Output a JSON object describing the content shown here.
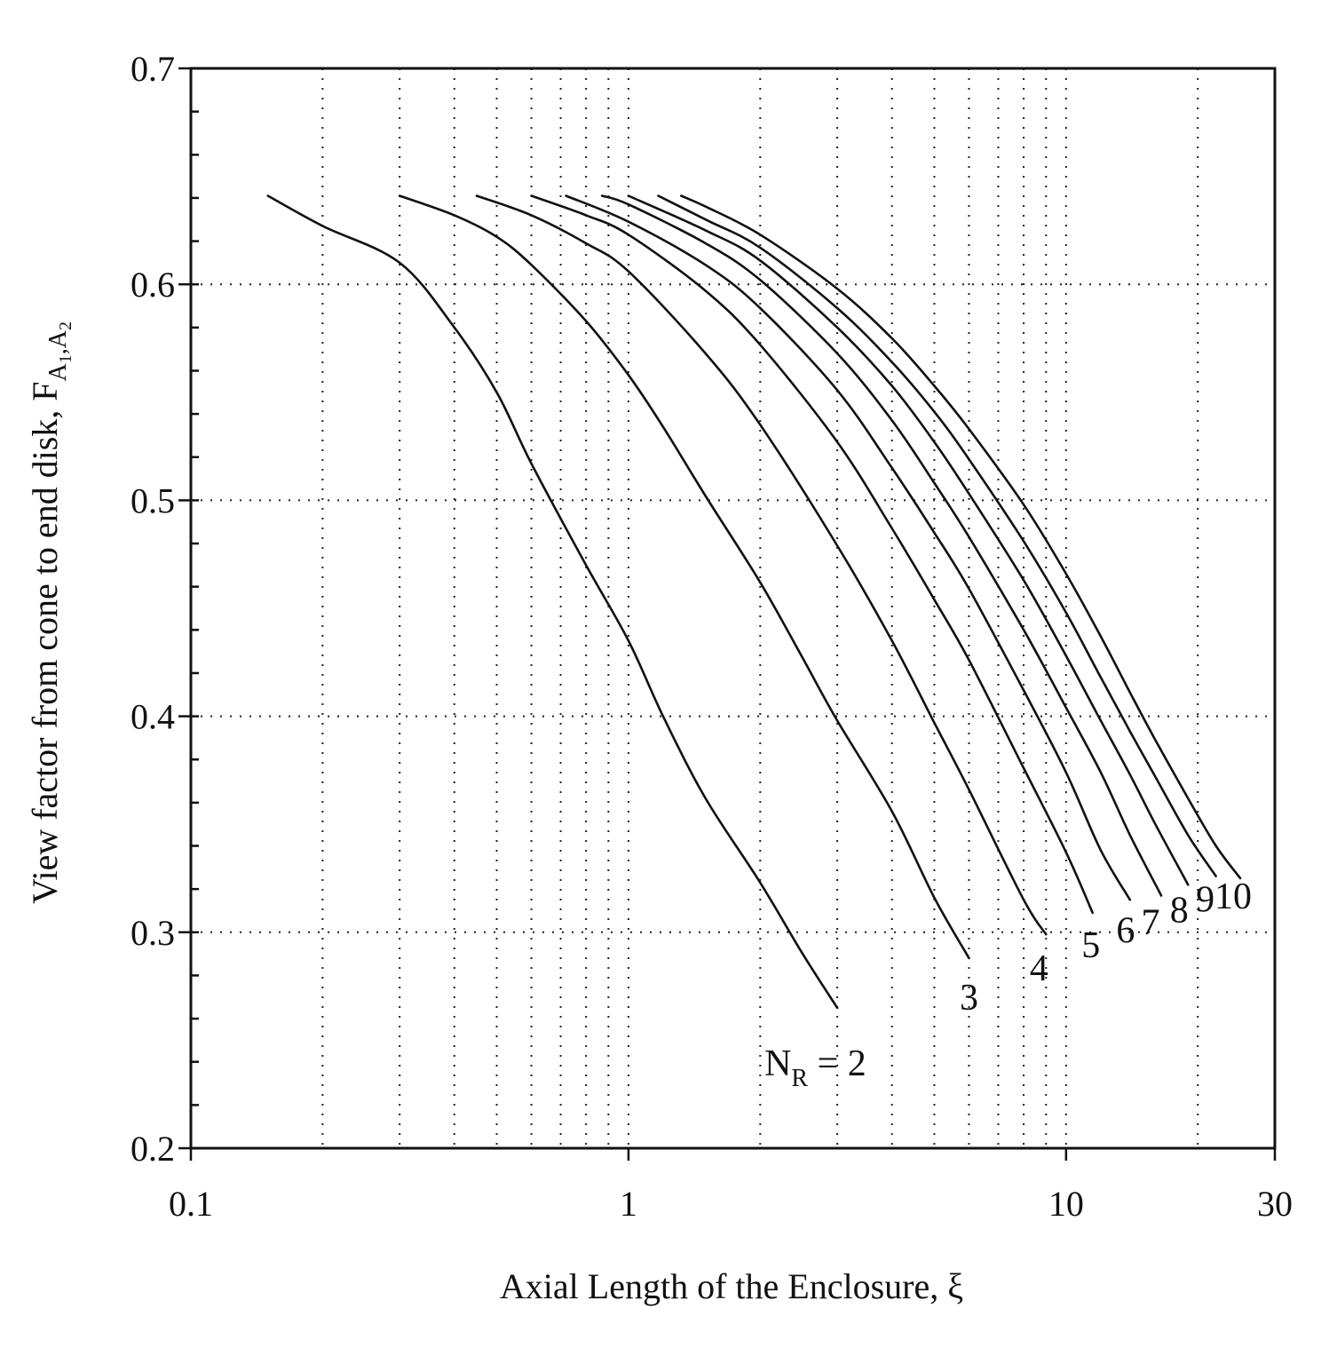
{
  "chart_data": {
    "type": "line",
    "title": "",
    "xlabel": "Axial Length of the Enclosure, ξ",
    "ylabel_prefix": "View factor from cone to end disk, F",
    "ylabel_sub": "A",
    "ylabel_sub_index_1": "1",
    "ylabel_sep": ",",
    "ylabel_sub_index_2": "2",
    "xscale": "log",
    "xlim": [
      0.1,
      30
    ],
    "ylim": [
      0.2,
      0.7
    ],
    "x_ticks": [
      {
        "value": 0.1,
        "label": "0.1"
      },
      {
        "value": 1,
        "label": "1"
      },
      {
        "value": 10,
        "label": "10"
      },
      {
        "value": 30,
        "label": "30"
      }
    ],
    "y_ticks": [
      {
        "value": 0.2,
        "label": "0.2"
      },
      {
        "value": 0.3,
        "label": "0.3"
      },
      {
        "value": 0.4,
        "label": "0.4"
      },
      {
        "value": 0.5,
        "label": "0.5"
      },
      {
        "value": 0.6,
        "label": "0.6"
      },
      {
        "value": 0.7,
        "label": "0.7"
      }
    ],
    "x_gridlines": [
      0.2,
      0.3,
      0.4,
      0.5,
      0.6,
      0.7,
      0.8,
      0.9,
      1,
      2,
      3,
      4,
      5,
      6,
      7,
      8,
      9,
      10,
      20
    ],
    "y_gridlines": [
      0.3,
      0.4,
      0.5,
      0.6
    ],
    "y_minor_step": 0.02,
    "grid": "dotted",
    "series": [
      {
        "name": "N_R = 2",
        "x": [
          0.15,
          0.2,
          0.3,
          0.4,
          0.5,
          0.6,
          0.8,
          1.0,
          1.2,
          1.5,
          2.0,
          2.5,
          3.0
        ],
        "y": [
          0.641,
          0.627,
          0.61,
          0.58,
          0.55,
          0.517,
          0.47,
          0.435,
          0.4,
          0.362,
          0.323,
          0.29,
          0.265
        ]
      },
      {
        "name": "3",
        "x": [
          0.3,
          0.4,
          0.5,
          0.6,
          0.8,
          1.0,
          1.2,
          1.5,
          2.0,
          2.5,
          3.0,
          4.0,
          5.0,
          6.0
        ],
        "y": [
          0.641,
          0.632,
          0.622,
          0.609,
          0.583,
          0.558,
          0.534,
          0.502,
          0.462,
          0.427,
          0.398,
          0.356,
          0.316,
          0.288
        ]
      },
      {
        "name": "4",
        "x": [
          0.45,
          0.6,
          0.8,
          1.0,
          1.5,
          2.0,
          3.0,
          4.0,
          5.0,
          6.0,
          8.0,
          9.0
        ],
        "y": [
          0.641,
          0.632,
          0.619,
          0.606,
          0.568,
          0.535,
          0.479,
          0.435,
          0.397,
          0.366,
          0.315,
          0.299
        ]
      },
      {
        "name": "5",
        "x": [
          0.6,
          0.8,
          1.0,
          1.5,
          2.0,
          3.0,
          4.0,
          5.0,
          6.0,
          8.0,
          10.0,
          11.5
        ],
        "y": [
          0.641,
          0.632,
          0.623,
          0.597,
          0.572,
          0.527,
          0.487,
          0.454,
          0.426,
          0.376,
          0.337,
          0.309
        ]
      },
      {
        "name": "6",
        "x": [
          0.72,
          1.0,
          1.5,
          2.0,
          3.0,
          4.0,
          5.0,
          6.0,
          8.0,
          10.0,
          12.0,
          14.0
        ],
        "y": [
          0.641,
          0.629,
          0.609,
          0.589,
          0.551,
          0.515,
          0.485,
          0.459,
          0.412,
          0.374,
          0.338,
          0.315
        ]
      },
      {
        "name": "7",
        "x": [
          0.87,
          1.0,
          1.5,
          2.0,
          3.0,
          4.0,
          5.0,
          6.0,
          8.0,
          10.0,
          12.0,
          14.0,
          16.5
        ],
        "y": [
          0.641,
          0.637,
          0.619,
          0.602,
          0.568,
          0.537,
          0.508,
          0.483,
          0.44,
          0.404,
          0.374,
          0.345,
          0.317
        ]
      },
      {
        "name": "8",
        "x": [
          1.0,
          1.5,
          2.0,
          3.0,
          4.0,
          5.0,
          6.0,
          8.0,
          10.0,
          12.0,
          14.0,
          16.0,
          19.0
        ],
        "y": [
          0.641,
          0.625,
          0.611,
          0.58,
          0.553,
          0.527,
          0.503,
          0.463,
          0.428,
          0.398,
          0.373,
          0.35,
          0.322
        ]
      },
      {
        "name": "9",
        "x": [
          1.17,
          1.5,
          2.0,
          3.0,
          4.0,
          5.0,
          6.0,
          8.0,
          10.0,
          12.0,
          14.0,
          16.0,
          19.0,
          22.0
        ],
        "y": [
          0.641,
          0.63,
          0.617,
          0.589,
          0.564,
          0.541,
          0.519,
          0.481,
          0.448,
          0.418,
          0.393,
          0.372,
          0.345,
          0.326
        ]
      },
      {
        "name": "10",
        "x": [
          1.32,
          1.5,
          2.0,
          3.0,
          4.0,
          5.0,
          6.0,
          8.0,
          10.0,
          12.0,
          14.0,
          16.0,
          19.0,
          22.0,
          25.0
        ],
        "y": [
          0.641,
          0.636,
          0.623,
          0.598,
          0.575,
          0.553,
          0.533,
          0.498,
          0.466,
          0.437,
          0.411,
          0.389,
          0.362,
          0.34,
          0.325
        ]
      }
    ],
    "annotations": [
      {
        "series": "N_R = 2",
        "label_main": "N",
        "label_sub": "R",
        "label_suffix": " = 2"
      },
      {
        "series": "3",
        "label": "3"
      },
      {
        "series": "4",
        "label": "4"
      },
      {
        "series": "5",
        "label": "5"
      },
      {
        "series": "6",
        "label": "6"
      },
      {
        "series": "7",
        "label": "7"
      },
      {
        "series": "8",
        "label": "8"
      },
      {
        "series": "9",
        "label": "9"
      },
      {
        "series": "10",
        "label": "10"
      }
    ]
  }
}
